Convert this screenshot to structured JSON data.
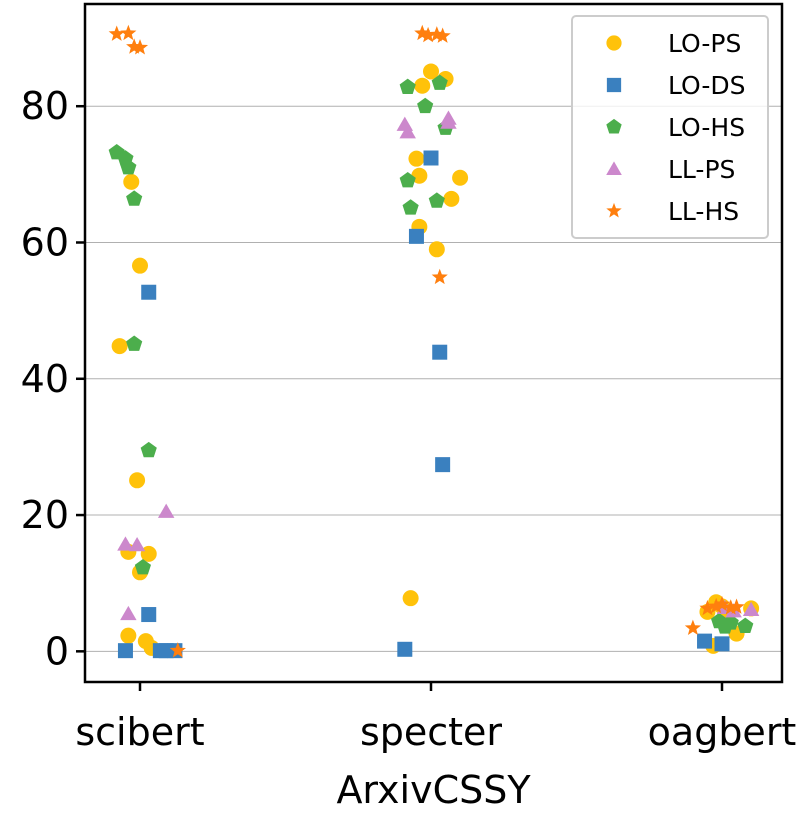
{
  "chart_data": {
    "type": "scatter",
    "xlabel": "ArxivCSSY",
    "ylabel": "",
    "categories": [
      "scibert",
      "specter",
      "oagbert"
    ],
    "ylim": [
      -4.5,
      95
    ],
    "yticks": [
      0,
      20,
      40,
      60,
      80
    ],
    "grid": "horizontal",
    "legend_position": "top-right",
    "series": [
      {
        "name": "LO-PS",
        "marker": "circle",
        "color": "#FFC20A",
        "points": [
          {
            "category": "scibert",
            "jitter": -0.07,
            "y": 44.8
          },
          {
            "category": "scibert",
            "jitter": -0.04,
            "y": 2.3
          },
          {
            "category": "scibert",
            "jitter": -0.04,
            "y": 14.6
          },
          {
            "category": "scibert",
            "jitter": -0.03,
            "y": 68.9
          },
          {
            "category": "scibert",
            "jitter": -0.01,
            "y": 25.1
          },
          {
            "category": "scibert",
            "jitter": 0.0,
            "y": 56.6
          },
          {
            "category": "scibert",
            "jitter": 0.0,
            "y": 11.6
          },
          {
            "category": "scibert",
            "jitter": 0.02,
            "y": 1.5
          },
          {
            "category": "scibert",
            "jitter": 0.03,
            "y": 14.3
          },
          {
            "category": "scibert",
            "jitter": 0.04,
            "y": 0.5
          },
          {
            "category": "specter",
            "jitter": -0.07,
            "y": 7.8
          },
          {
            "category": "specter",
            "jitter": -0.05,
            "y": 72.3
          },
          {
            "category": "specter",
            "jitter": -0.04,
            "y": 62.3
          },
          {
            "category": "specter",
            "jitter": -0.04,
            "y": 69.8
          },
          {
            "category": "specter",
            "jitter": -0.03,
            "y": 83.0
          },
          {
            "category": "specter",
            "jitter": 0.0,
            "y": 85.1
          },
          {
            "category": "specter",
            "jitter": 0.02,
            "y": 59.0
          },
          {
            "category": "specter",
            "jitter": 0.05,
            "y": 84.0
          },
          {
            "category": "specter",
            "jitter": 0.07,
            "y": 66.4
          },
          {
            "category": "specter",
            "jitter": 0.1,
            "y": 69.5
          },
          {
            "category": "oagbert",
            "jitter": -0.05,
            "y": 5.8
          },
          {
            "category": "oagbert",
            "jitter": -0.03,
            "y": 0.8
          },
          {
            "category": "oagbert",
            "jitter": -0.02,
            "y": 7.2
          },
          {
            "category": "oagbert",
            "jitter": 0.0,
            "y": 6.6
          },
          {
            "category": "oagbert",
            "jitter": 0.02,
            "y": 5.4
          },
          {
            "category": "oagbert",
            "jitter": 0.05,
            "y": 2.6
          },
          {
            "category": "oagbert",
            "jitter": 0.1,
            "y": 6.3
          }
        ]
      },
      {
        "name": "LO-DS",
        "marker": "square",
        "color": "#3A80BF",
        "points": [
          {
            "category": "scibert",
            "jitter": -0.05,
            "y": 0.1
          },
          {
            "category": "scibert",
            "jitter": 0.03,
            "y": 52.7
          },
          {
            "category": "scibert",
            "jitter": 0.03,
            "y": 5.4
          },
          {
            "category": "scibert",
            "jitter": 0.07,
            "y": 0.1
          },
          {
            "category": "scibert",
            "jitter": 0.09,
            "y": 0.1
          },
          {
            "category": "scibert",
            "jitter": 0.12,
            "y": 0.1
          },
          {
            "category": "specter",
            "jitter": -0.09,
            "y": 0.3
          },
          {
            "category": "specter",
            "jitter": -0.05,
            "y": 60.9
          },
          {
            "category": "specter",
            "jitter": 0.0,
            "y": 72.4
          },
          {
            "category": "specter",
            "jitter": 0.03,
            "y": 43.9
          },
          {
            "category": "specter",
            "jitter": 0.04,
            "y": 27.4
          },
          {
            "category": "oagbert",
            "jitter": -0.06,
            "y": 1.5
          },
          {
            "category": "oagbert",
            "jitter": 0.0,
            "y": 1.1
          }
        ]
      },
      {
        "name": "LO-HS",
        "marker": "pentagon",
        "color": "#4CAE4C",
        "points": [
          {
            "category": "scibert",
            "jitter": -0.08,
            "y": 73.2
          },
          {
            "category": "scibert",
            "jitter": -0.05,
            "y": 72.3
          },
          {
            "category": "scibert",
            "jitter": -0.04,
            "y": 71.0
          },
          {
            "category": "scibert",
            "jitter": -0.02,
            "y": 66.4
          },
          {
            "category": "scibert",
            "jitter": -0.02,
            "y": 45.1
          },
          {
            "category": "scibert",
            "jitter": 0.01,
            "y": 12.3
          },
          {
            "category": "scibert",
            "jitter": 0.03,
            "y": 29.5
          },
          {
            "category": "specter",
            "jitter": -0.08,
            "y": 82.8
          },
          {
            "category": "specter",
            "jitter": -0.08,
            "y": 69.1
          },
          {
            "category": "specter",
            "jitter": -0.07,
            "y": 65.1
          },
          {
            "category": "specter",
            "jitter": -0.02,
            "y": 80.0
          },
          {
            "category": "specter",
            "jitter": 0.02,
            "y": 66.1
          },
          {
            "category": "specter",
            "jitter": 0.03,
            "y": 83.4
          },
          {
            "category": "specter",
            "jitter": 0.05,
            "y": 76.8
          },
          {
            "category": "oagbert",
            "jitter": -0.01,
            "y": 4.4
          },
          {
            "category": "oagbert",
            "jitter": 0.01,
            "y": 3.6
          },
          {
            "category": "oagbert",
            "jitter": 0.03,
            "y": 4.2
          },
          {
            "category": "oagbert",
            "jitter": 0.08,
            "y": 3.7
          }
        ]
      },
      {
        "name": "LL-PS",
        "marker": "triangle",
        "color": "#CC88CC",
        "points": [
          {
            "category": "scibert",
            "jitter": -0.05,
            "y": 15.7
          },
          {
            "category": "scibert",
            "jitter": -0.04,
            "y": 5.5
          },
          {
            "category": "scibert",
            "jitter": -0.01,
            "y": 15.6
          },
          {
            "category": "scibert",
            "jitter": 0.09,
            "y": 20.5
          },
          {
            "category": "specter",
            "jitter": -0.09,
            "y": 77.3
          },
          {
            "category": "specter",
            "jitter": -0.08,
            "y": 76.2
          },
          {
            "category": "specter",
            "jitter": 0.06,
            "y": 77.6
          },
          {
            "category": "specter",
            "jitter": 0.06,
            "y": 78.2
          },
          {
            "category": "oagbert",
            "jitter": 0.01,
            "y": 6.4
          },
          {
            "category": "oagbert",
            "jitter": 0.04,
            "y": 5.9
          },
          {
            "category": "oagbert",
            "jitter": 0.1,
            "y": 6.1
          }
        ]
      },
      {
        "name": "LL-HS",
        "marker": "star",
        "color": "#FF7F0E",
        "points": [
          {
            "category": "scibert",
            "jitter": -0.08,
            "y": 90.6
          },
          {
            "category": "scibert",
            "jitter": -0.04,
            "y": 90.7
          },
          {
            "category": "scibert",
            "jitter": -0.02,
            "y": 88.7
          },
          {
            "category": "scibert",
            "jitter": 0.0,
            "y": 88.6
          },
          {
            "category": "scibert",
            "jitter": 0.13,
            "y": 0.1
          },
          {
            "category": "specter",
            "jitter": -0.03,
            "y": 90.7
          },
          {
            "category": "specter",
            "jitter": -0.01,
            "y": 90.4
          },
          {
            "category": "specter",
            "jitter": 0.02,
            "y": 90.5
          },
          {
            "category": "specter",
            "jitter": 0.04,
            "y": 90.3
          },
          {
            "category": "specter",
            "jitter": 0.03,
            "y": 54.9
          },
          {
            "category": "oagbert",
            "jitter": -0.1,
            "y": 3.4
          },
          {
            "category": "oagbert",
            "jitter": -0.05,
            "y": 6.3
          },
          {
            "category": "oagbert",
            "jitter": -0.02,
            "y": 6.6
          },
          {
            "category": "oagbert",
            "jitter": 0.0,
            "y": 6.9
          },
          {
            "category": "oagbert",
            "jitter": 0.03,
            "y": 6.4
          },
          {
            "category": "oagbert",
            "jitter": 0.05,
            "y": 6.5
          }
        ]
      }
    ]
  }
}
